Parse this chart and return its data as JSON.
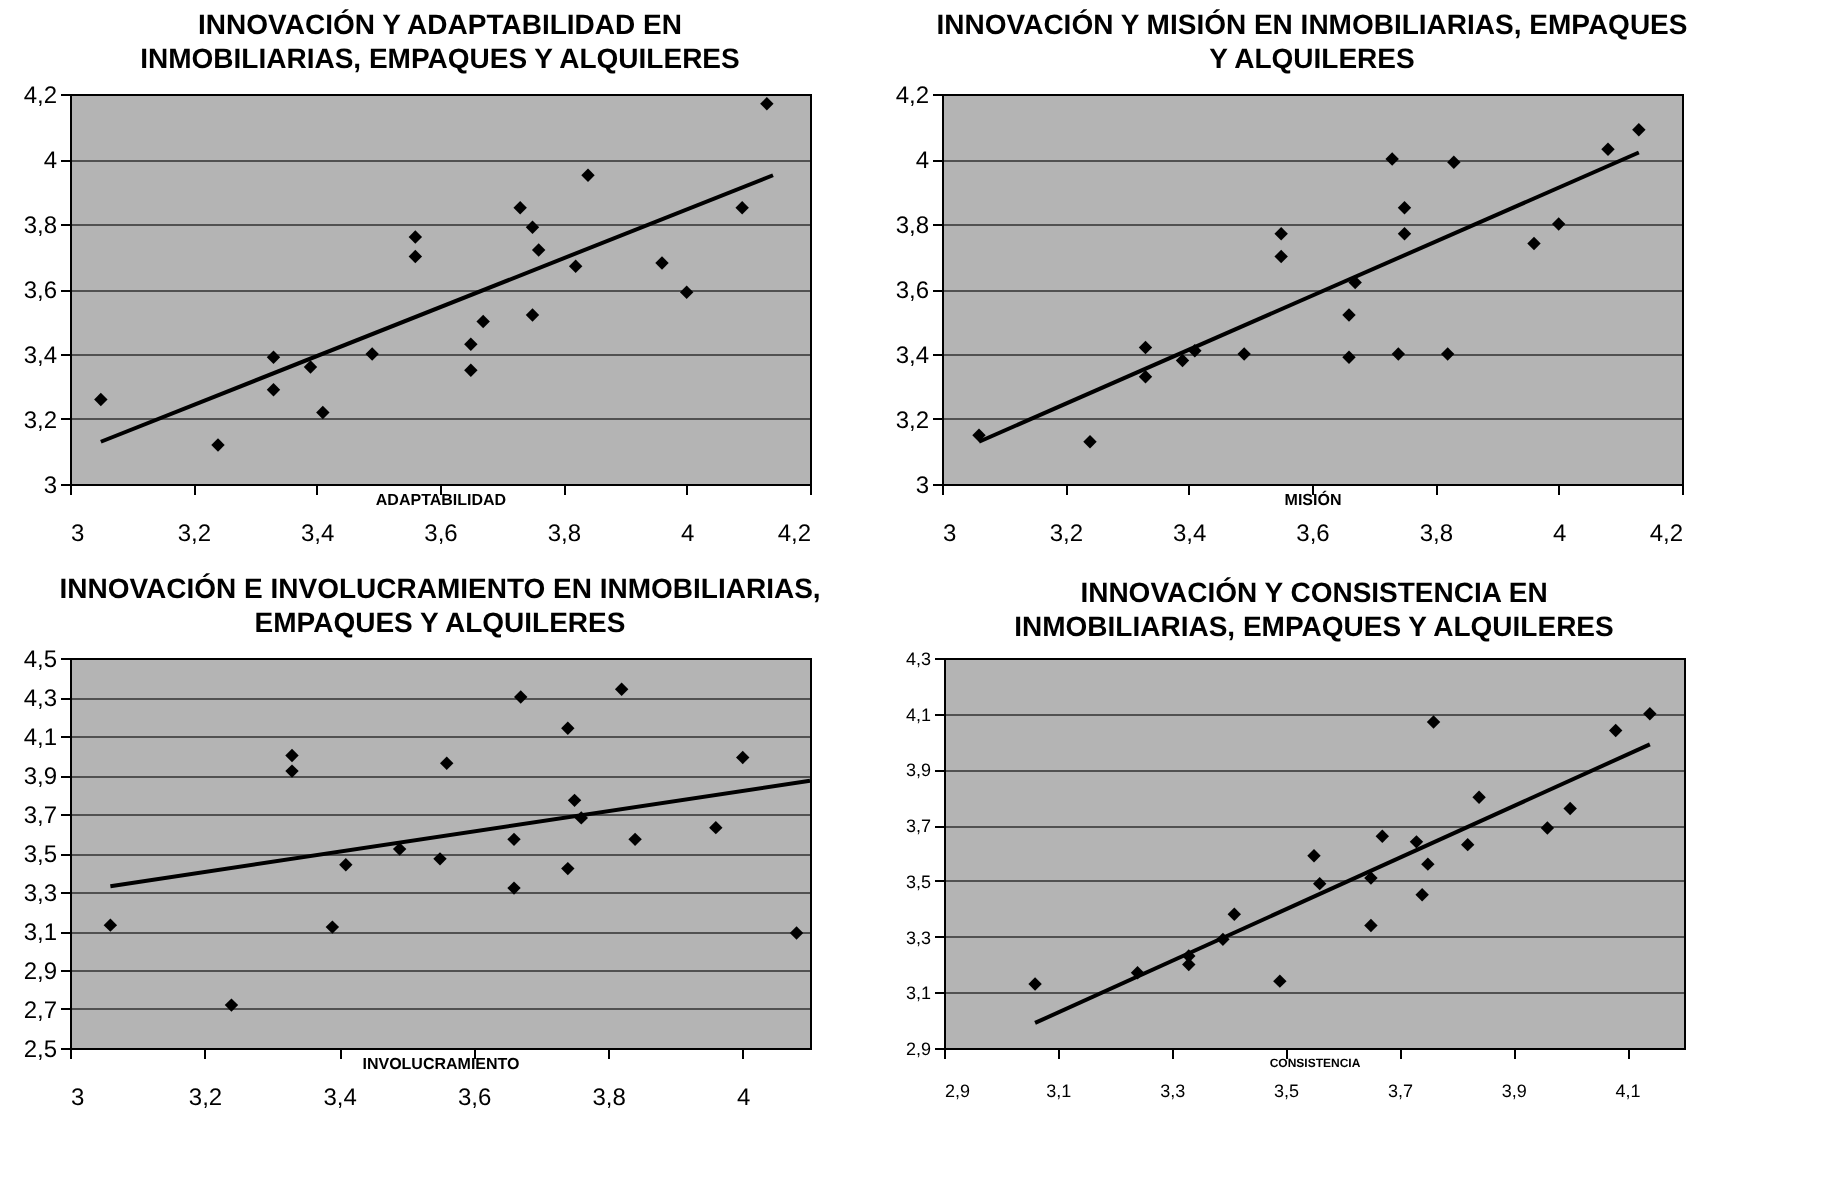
{
  "chart_data": [
    {
      "type": "scatter",
      "title": "INNOVACIÓN Y ADAPTABILIDAD EN INMOBILIARIAS, EMPAQUES Y ALQUILERES",
      "xlabel": "ADAPTABILIDAD",
      "grid": "y",
      "xlim": [
        3,
        4.2
      ],
      "xticks": [
        {
          "value": 3,
          "label": "3"
        },
        {
          "value": 3.2,
          "label": "3,2"
        },
        {
          "value": 3.4,
          "label": "3,4"
        },
        {
          "value": 3.6,
          "label": "3,6"
        },
        {
          "value": 3.8,
          "label": "3,8"
        },
        {
          "value": 4,
          "label": "4"
        },
        {
          "value": 4.2,
          "label": "4,2"
        }
      ],
      "ylim": [
        3,
        4.2
      ],
      "yticks": [
        {
          "value": 3,
          "label": "3"
        },
        {
          "value": 3.2,
          "label": "3,2"
        },
        {
          "value": 3.4,
          "label": "3,4"
        },
        {
          "value": 3.6,
          "label": "3,6"
        },
        {
          "value": 3.8,
          "label": "3,8"
        },
        {
          "value": 4,
          "label": "4"
        },
        {
          "value": 4.2,
          "label": "4,2"
        }
      ],
      "series": [
        {
          "type": "scatter",
          "marker": "diamond",
          "color": "#000000",
          "x": [
            3.05,
            3.24,
            3.33,
            3.33,
            3.39,
            3.41,
            3.49,
            3.56,
            3.56,
            3.65,
            3.65,
            3.67,
            3.73,
            3.75,
            3.75,
            3.76,
            3.82,
            3.84,
            3.96,
            4.0,
            4.09,
            4.13
          ],
          "values": [
            3.26,
            3.12,
            3.39,
            3.29,
            3.36,
            3.22,
            3.4,
            3.76,
            3.7,
            3.43,
            3.35,
            3.5,
            3.85,
            3.52,
            3.79,
            3.72,
            3.67,
            3.95,
            3.68,
            3.59,
            3.85,
            4.17
          ]
        },
        {
          "type": "line",
          "color": "#000000",
          "x": [
            3.05,
            4.14
          ],
          "values": [
            3.13,
            3.95
          ]
        }
      ]
    },
    {
      "type": "scatter",
      "title": "INNOVACIÓN Y MISIÓN EN INMOBILIARIAS, EMPAQUES Y ALQUILERES",
      "xlabel": "MISIÓN",
      "grid": "y",
      "xlim": [
        3,
        4.2
      ],
      "xticks": [
        {
          "value": 3,
          "label": "3"
        },
        {
          "value": 3.2,
          "label": "3,2"
        },
        {
          "value": 3.4,
          "label": "3,4"
        },
        {
          "value": 3.6,
          "label": "3,6"
        },
        {
          "value": 3.8,
          "label": "3,8"
        },
        {
          "value": 4,
          "label": "4"
        },
        {
          "value": 4.2,
          "label": "4,2"
        }
      ],
      "ylim": [
        3,
        4.2
      ],
      "yticks": [
        {
          "value": 3,
          "label": "3"
        },
        {
          "value": 3.2,
          "label": "3,2"
        },
        {
          "value": 3.4,
          "label": "3,4"
        },
        {
          "value": 3.6,
          "label": "3,6"
        },
        {
          "value": 3.8,
          "label": "3,8"
        },
        {
          "value": 4,
          "label": "4"
        },
        {
          "value": 4.2,
          "label": "4,2"
        }
      ],
      "series": [
        {
          "type": "scatter",
          "marker": "diamond",
          "color": "#000000",
          "x": [
            3.06,
            3.24,
            3.33,
            3.33,
            3.39,
            3.41,
            3.49,
            3.55,
            3.55,
            3.66,
            3.66,
            3.67,
            3.73,
            3.74,
            3.75,
            3.75,
            3.82,
            3.83,
            3.96,
            4.0,
            4.08,
            4.13
          ],
          "values": [
            3.15,
            3.13,
            3.42,
            3.33,
            3.38,
            3.41,
            3.4,
            3.77,
            3.7,
            3.52,
            3.39,
            3.62,
            4.0,
            3.4,
            3.85,
            3.77,
            3.4,
            3.99,
            3.74,
            3.8,
            4.03,
            4.09
          ]
        },
        {
          "type": "line",
          "color": "#000000",
          "x": [
            3.06,
            4.13
          ],
          "values": [
            3.13,
            4.02
          ]
        }
      ]
    },
    {
      "type": "scatter",
      "title": "INNOVACIÓN E INVOLUCRAMIENTO EN INMOBILIARIAS, EMPAQUES Y ALQUILERES",
      "xlabel": "INVOLUCRAMIENTO",
      "grid": "y",
      "xlim": [
        3,
        4.1
      ],
      "xticks": [
        {
          "value": 3,
          "label": "3"
        },
        {
          "value": 3.2,
          "label": "3,2"
        },
        {
          "value": 3.4,
          "label": "3,4"
        },
        {
          "value": 3.6,
          "label": "3,6"
        },
        {
          "value": 3.8,
          "label": "3,8"
        },
        {
          "value": 4,
          "label": "4"
        }
      ],
      "ylim": [
        2.5,
        4.5
      ],
      "yticks": [
        {
          "value": 2.5,
          "label": "2,5"
        },
        {
          "value": 2.7,
          "label": "2,7"
        },
        {
          "value": 2.9,
          "label": "2,9"
        },
        {
          "value": 3.1,
          "label": "3,1"
        },
        {
          "value": 3.3,
          "label": "3,3"
        },
        {
          "value": 3.5,
          "label": "3,5"
        },
        {
          "value": 3.7,
          "label": "3,7"
        },
        {
          "value": 3.9,
          "label": "3,9"
        },
        {
          "value": 4.1,
          "label": "4,1"
        },
        {
          "value": 4.3,
          "label": "4,3"
        },
        {
          "value": 4.5,
          "label": "4,5"
        }
      ],
      "series": [
        {
          "type": "scatter",
          "marker": "diamond",
          "color": "#000000",
          "x": [
            3.06,
            3.24,
            3.33,
            3.33,
            3.39,
            3.41,
            3.49,
            3.55,
            3.56,
            3.66,
            3.66,
            3.67,
            3.74,
            3.74,
            3.75,
            3.76,
            3.82,
            3.84,
            3.96,
            4.0,
            4.08
          ],
          "values": [
            3.13,
            2.72,
            4.0,
            3.92,
            3.12,
            3.44,
            3.52,
            3.47,
            3.96,
            3.57,
            3.32,
            4.3,
            4.14,
            3.42,
            3.77,
            3.68,
            4.34,
            3.57,
            3.63,
            3.99,
            3.09
          ]
        },
        {
          "type": "line",
          "color": "#000000",
          "x": [
            3.06,
            4.1
          ],
          "values": [
            3.33,
            3.87
          ]
        }
      ]
    },
    {
      "type": "scatter",
      "title": "INNOVACIÓN Y CONSISTENCIA EN INMOBILIARIAS, EMPAQUES Y ALQUILERES",
      "xlabel": "CONSISTENCIA",
      "grid": "y",
      "xlim": [
        2.9,
        4.2
      ],
      "xticks": [
        {
          "value": 2.9,
          "label": "2,9"
        },
        {
          "value": 3.1,
          "label": "3,1"
        },
        {
          "value": 3.3,
          "label": "3,3"
        },
        {
          "value": 3.5,
          "label": "3,5"
        },
        {
          "value": 3.7,
          "label": "3,7"
        },
        {
          "value": 3.9,
          "label": "3,9"
        },
        {
          "value": 4.1,
          "label": "4,1"
        }
      ],
      "ylim": [
        2.9,
        4.3
      ],
      "yticks": [
        {
          "value": 2.9,
          "label": "2,9"
        },
        {
          "value": 3.1,
          "label": "3,1"
        },
        {
          "value": 3.3,
          "label": "3,3"
        },
        {
          "value": 3.5,
          "label": "3,5"
        },
        {
          "value": 3.7,
          "label": "3,7"
        },
        {
          "value": 3.9,
          "label": "3,9"
        },
        {
          "value": 4.1,
          "label": "4,1"
        },
        {
          "value": 4.3,
          "label": "4,3"
        }
      ],
      "series": [
        {
          "type": "scatter",
          "marker": "diamond",
          "color": "#000000",
          "x": [
            3.06,
            3.24,
            3.33,
            3.33,
            3.39,
            3.41,
            3.49,
            3.55,
            3.56,
            3.65,
            3.65,
            3.67,
            3.73,
            3.74,
            3.75,
            3.76,
            3.82,
            3.84,
            3.96,
            4.0,
            4.08,
            4.14
          ],
          "values": [
            3.13,
            3.17,
            3.23,
            3.2,
            3.29,
            3.38,
            3.14,
            3.59,
            3.49,
            3.51,
            3.34,
            3.66,
            3.64,
            3.45,
            3.56,
            4.07,
            3.63,
            3.8,
            3.69,
            3.76,
            4.04,
            4.1
          ]
        },
        {
          "type": "line",
          "color": "#000000",
          "x": [
            3.06,
            4.14
          ],
          "values": [
            2.99,
            3.99
          ]
        }
      ]
    }
  ]
}
